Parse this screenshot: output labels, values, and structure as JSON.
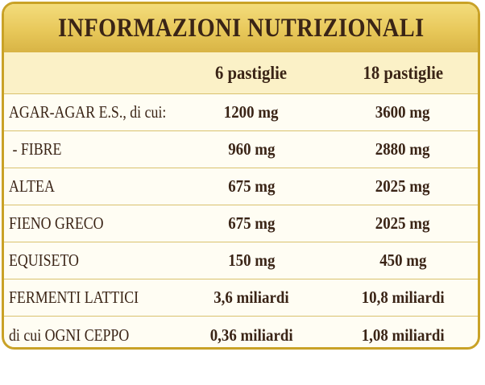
{
  "title": "INFORMAZIONI NUTRIZIONALI",
  "columns": [
    "6 pastiglie",
    "18 pastiglie"
  ],
  "rows": [
    {
      "label": "AGAR-AGAR E.S., di cui:",
      "col1": "1200 mg",
      "col2": "3600 mg"
    },
    {
      "label": " - FIBRE",
      "col1": "960 mg",
      "col2": "2880 mg"
    },
    {
      "label": "ALTEA",
      "col1": "675 mg",
      "col2": "2025 mg"
    },
    {
      "label": "FIENO GRECO",
      "col1": "675 mg",
      "col2": "2025 mg"
    },
    {
      "label": "EQUISETO",
      "col1": "150 mg",
      "col2": "450 mg"
    },
    {
      "label": "FERMENTI LATTICI",
      "col1": "3,6 miliardi",
      "col2": "10,8 miliardi"
    },
    {
      "label": "di cui OGNI CEPPO",
      "col1": "0,36 miliardi",
      "col2": "1,08 miliardi"
    }
  ],
  "colors": {
    "border": "#c9a227",
    "title_bg": "#e8c85a",
    "header_bg": "#fbf1c7",
    "panel_bg": "#fffdf3",
    "text": "#3a2416",
    "divider": "#d9c26e"
  }
}
